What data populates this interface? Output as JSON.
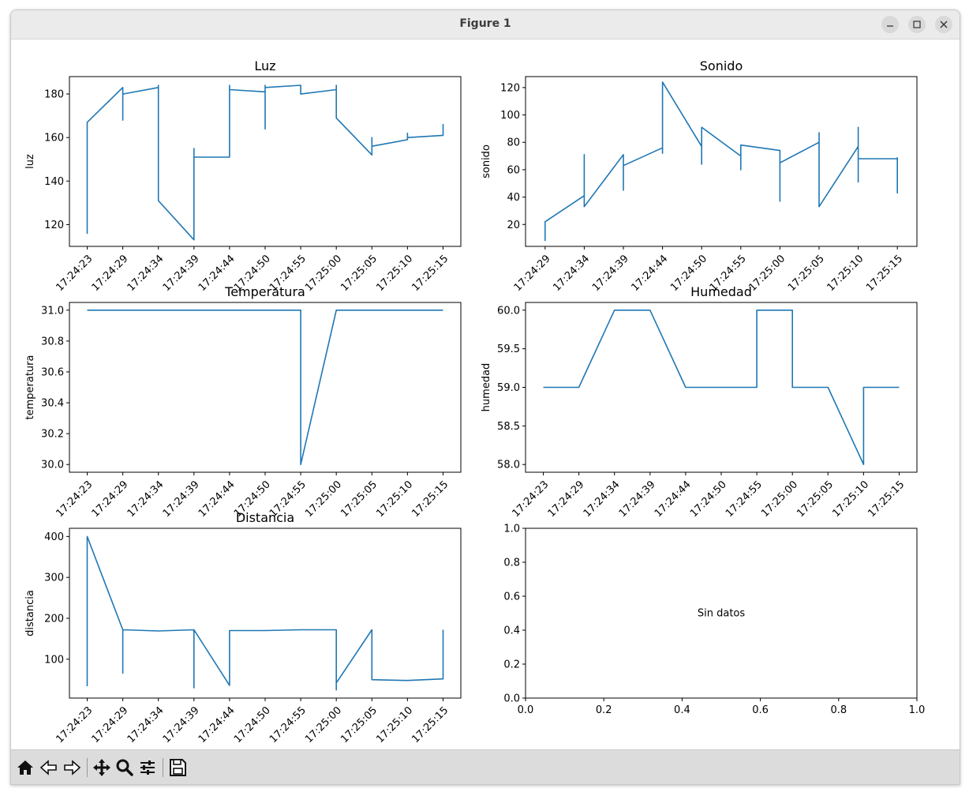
{
  "window": {
    "title": "Figure 1"
  },
  "figure": {
    "message": "Sin datos"
  },
  "chart_data": [
    {
      "type": "line",
      "title": "Luz",
      "ylabel": "luz",
      "xlabel": "",
      "ylim": [
        110,
        188
      ],
      "yticks": [
        120,
        140,
        160,
        180
      ],
      "xticks": [
        "17:24:23",
        "17:24:29",
        "17:24:34",
        "17:24:39",
        "17:24:44",
        "17:24:50",
        "17:24:55",
        "17:25:00",
        "17:25:05",
        "17:25:10",
        "17:25:15"
      ],
      "xrange": [
        -0.5,
        10.5
      ],
      "x": [
        0,
        0,
        0,
        0,
        1,
        1,
        1,
        1,
        2,
        2,
        2,
        3,
        3,
        3,
        3,
        4,
        4,
        4,
        5,
        5,
        5,
        5,
        6,
        6,
        6,
        7,
        7,
        7,
        7,
        8,
        8,
        8,
        9,
        9,
        9,
        10,
        10,
        10
      ],
      "values": [
        159,
        116,
        134,
        167,
        183,
        168,
        183,
        180,
        183,
        184,
        131,
        113,
        155,
        148,
        151,
        151,
        184,
        182,
        181,
        164,
        184,
        183,
        184,
        184,
        180,
        182,
        173,
        184,
        169,
        152,
        160,
        156,
        159,
        162,
        160,
        161,
        166,
        163
      ],
      "color": "#1f77b4"
    },
    {
      "type": "line",
      "title": "Sonido",
      "ylabel": "sonido",
      "xlabel": "",
      "ylim": [
        4,
        128
      ],
      "yticks": [
        20,
        40,
        60,
        80,
        100,
        120
      ],
      "xticks": [
        "17:24:29",
        "17:24:34",
        "17:24:39",
        "17:24:44",
        "17:24:50",
        "17:24:55",
        "17:25:00",
        "17:25:05",
        "17:25:10",
        "17:25:15"
      ],
      "xrange": [
        -0.5,
        9.5
      ],
      "x": [
        0,
        0,
        0,
        1,
        1,
        1,
        1,
        2,
        2,
        2,
        2,
        3,
        3,
        3,
        3,
        4,
        4,
        4,
        5,
        5,
        5,
        6,
        6,
        6,
        7,
        7,
        7,
        8,
        8,
        8,
        8,
        9,
        9,
        9
      ],
      "values": [
        8,
        22,
        22,
        41,
        71,
        33,
        33,
        71,
        45,
        63,
        63,
        76,
        72,
        124,
        124,
        77,
        64,
        91,
        70,
        60,
        78,
        74,
        37,
        65,
        80,
        87,
        33,
        77,
        91,
        51,
        68,
        68,
        43,
        69
      ],
      "color": "#1f77b4"
    },
    {
      "type": "line",
      "title": "Temperatura",
      "ylabel": "temperatura",
      "xlabel": "",
      "ylim": [
        29.95,
        31.05
      ],
      "yticks": [
        30.0,
        30.2,
        30.4,
        30.6,
        30.8,
        31.0
      ],
      "xticks": [
        "17:24:23",
        "17:24:29",
        "17:24:34",
        "17:24:39",
        "17:24:44",
        "17:24:50",
        "17:24:55",
        "17:25:00",
        "17:25:05",
        "17:25:10",
        "17:25:15"
      ],
      "xrange": [
        -0.5,
        10.5
      ],
      "x": [
        0,
        1,
        2,
        3,
        4,
        5,
        6,
        6,
        7,
        7,
        8,
        9,
        10
      ],
      "values": [
        31.0,
        31.0,
        31.0,
        31.0,
        31.0,
        31.0,
        31.0,
        30.0,
        31.0,
        31.0,
        31.0,
        31.0,
        31.0
      ],
      "color": "#1f77b4"
    },
    {
      "type": "line",
      "title": "Humedad",
      "ylabel": "humedad",
      "xlabel": "",
      "ylim": [
        57.9,
        60.1
      ],
      "yticks": [
        58.0,
        58.5,
        59.0,
        59.5,
        60.0
      ],
      "xticks": [
        "17:24:23",
        "17:24:29",
        "17:24:34",
        "17:24:39",
        "17:24:44",
        "17:24:50",
        "17:24:55",
        "17:25:00",
        "17:25:05",
        "17:25:10",
        "17:25:15"
      ],
      "xrange": [
        -0.5,
        10.5
      ],
      "x": [
        0,
        1,
        2,
        3,
        4,
        5,
        6,
        6,
        7,
        7,
        8,
        9,
        9,
        10
      ],
      "values": [
        59.0,
        59.0,
        60.0,
        60.0,
        59.0,
        59.0,
        59.0,
        60.0,
        60.0,
        59.0,
        59.0,
        58.0,
        59.0,
        59.0
      ],
      "color": "#1f77b4"
    },
    {
      "type": "line",
      "title": "Distancia",
      "ylabel": "distancia",
      "xlabel": "",
      "ylim": [
        5,
        420
      ],
      "yticks": [
        100,
        200,
        300,
        400
      ],
      "xticks": [
        "17:24:23",
        "17:24:29",
        "17:24:34",
        "17:24:39",
        "17:24:44",
        "17:24:50",
        "17:24:55",
        "17:25:00",
        "17:25:05",
        "17:25:10",
        "17:25:15"
      ],
      "xrange": [
        -0.5,
        10.5
      ],
      "x": [
        0,
        0,
        0,
        1,
        1,
        1,
        2,
        3,
        3,
        3,
        4,
        4,
        5,
        6,
        7,
        7,
        7,
        8,
        8,
        9,
        10,
        10
      ],
      "values": [
        34,
        155,
        400,
        172,
        66,
        172,
        169,
        172,
        30,
        172,
        36,
        170,
        170,
        172,
        172,
        25,
        42,
        172,
        50,
        48,
        52,
        172
      ],
      "color": "#1f77b4"
    },
    {
      "type": "line",
      "title": "",
      "xlim": [
        0.0,
        1.0
      ],
      "ylim": [
        0.0,
        1.0
      ],
      "xticks": [
        "0.0",
        "0.2",
        "0.4",
        "0.6",
        "0.8",
        "1.0"
      ],
      "yticks": [
        "0.0",
        "0.2",
        "0.4",
        "0.6",
        "0.8",
        "1.0"
      ],
      "annotation": "Sin datos"
    }
  ],
  "toolbar": {
    "buttons": [
      "home-icon",
      "back-icon",
      "forward-icon",
      "pan-icon",
      "zoom-icon",
      "configure-icon",
      "save-icon"
    ]
  }
}
